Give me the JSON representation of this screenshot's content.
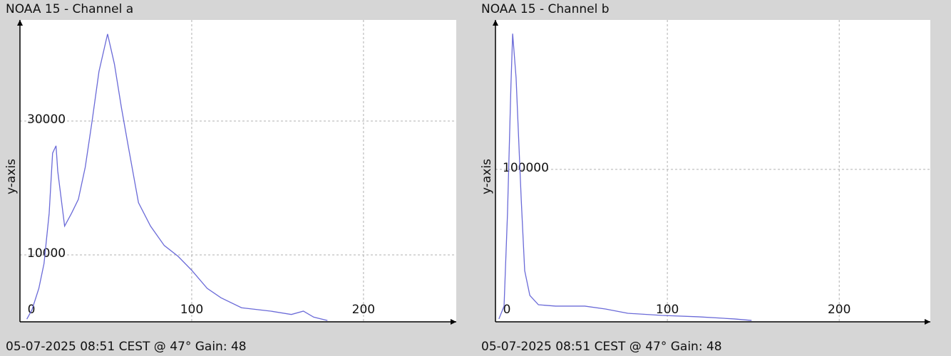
{
  "chart_data": [
    {
      "type": "line",
      "title": "NOAA 15 - Channel a",
      "ylabel": "y-axis",
      "footer": "05-07-2025 08:51 CEST @ 47° Gain: 48",
      "xlim": [
        0,
        254
      ],
      "xticks": [
        0,
        100,
        200
      ],
      "ylim": [
        0,
        45100
      ],
      "yticks": [
        10000,
        30000
      ],
      "grid": true,
      "color": "#6a6ad8",
      "x": [
        4,
        7,
        11,
        14,
        17,
        19,
        21,
        22,
        26,
        30,
        34,
        38,
        42,
        46,
        51,
        55,
        59,
        63,
        69,
        76,
        84,
        92,
        100,
        109,
        117,
        129,
        146,
        158,
        165,
        171,
        179
      ],
      "values": [
        400,
        1800,
        5000,
        8700,
        16200,
        25200,
        26300,
        22500,
        14300,
        16200,
        18300,
        23100,
        30000,
        37400,
        43000,
        38500,
        32100,
        26300,
        17800,
        14300,
        11400,
        9800,
        7700,
        5000,
        3600,
        2100,
        1600,
        1100,
        1600,
        700,
        200
      ]
    },
    {
      "type": "line",
      "title": "NOAA 15 - Channel b",
      "ylabel": "y-axis",
      "footer": "05-07-2025 08:51 CEST @ 47° Gain: 48",
      "xlim": [
        0,
        253
      ],
      "xticks": [
        0,
        100,
        200
      ],
      "ylim": [
        0,
        198000
      ],
      "yticks": [
        100000
      ],
      "grid": true,
      "color": "#6a6ad8",
      "x": [
        2,
        5,
        7,
        9,
        10,
        12,
        15,
        17,
        20,
        25,
        35,
        52,
        64,
        77,
        97,
        118,
        139,
        149
      ],
      "values": [
        1900,
        10300,
        71000,
        155000,
        189000,
        160000,
        80000,
        33600,
        17300,
        11200,
        10300,
        10300,
        8400,
        5600,
        4200,
        3300,
        1900,
        900
      ]
    }
  ]
}
